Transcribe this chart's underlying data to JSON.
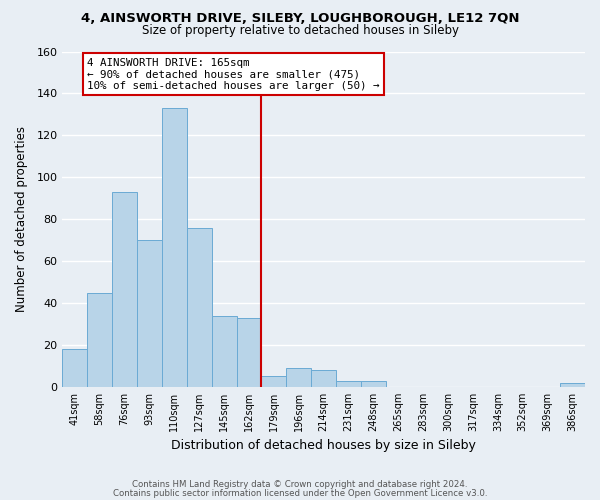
{
  "title": "4, AINSWORTH DRIVE, SILEBY, LOUGHBOROUGH, LE12 7QN",
  "subtitle": "Size of property relative to detached houses in Sileby",
  "xlabel": "Distribution of detached houses by size in Sileby",
  "ylabel": "Number of detached properties",
  "bin_labels": [
    "41sqm",
    "58sqm",
    "76sqm",
    "93sqm",
    "110sqm",
    "127sqm",
    "145sqm",
    "162sqm",
    "179sqm",
    "196sqm",
    "214sqm",
    "231sqm",
    "248sqm",
    "265sqm",
    "283sqm",
    "300sqm",
    "317sqm",
    "334sqm",
    "352sqm",
    "369sqm",
    "386sqm"
  ],
  "bar_heights": [
    18,
    45,
    93,
    70,
    133,
    76,
    34,
    33,
    5,
    9,
    8,
    3,
    3,
    0,
    0,
    0,
    0,
    0,
    0,
    0,
    2
  ],
  "bar_color": "#b8d4e8",
  "bar_edge_color": "#6aaad4",
  "vline_x": 7.5,
  "vline_color": "#cc0000",
  "annotation_box_text": "4 AINSWORTH DRIVE: 165sqm\n← 90% of detached houses are smaller (475)\n10% of semi-detached houses are larger (50) →",
  "annotation_box_color": "#ffffff",
  "annotation_box_edge_color": "#cc0000",
  "ylim": [
    0,
    160
  ],
  "yticks": [
    0,
    20,
    40,
    60,
    80,
    100,
    120,
    140,
    160
  ],
  "background_color": "#e8eef4",
  "plot_bg_color": "#e8eef4",
  "grid_color": "#ffffff",
  "footer_line1": "Contains HM Land Registry data © Crown copyright and database right 2024.",
  "footer_line2": "Contains public sector information licensed under the Open Government Licence v3.0."
}
